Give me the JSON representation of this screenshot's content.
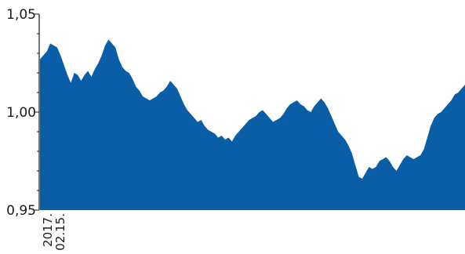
{
  "chart_data": {
    "type": "area",
    "title": "",
    "xlabel": "",
    "ylabel": "",
    "ylim": [
      0.95,
      1.05
    ],
    "yticks": [
      {
        "value": 1.05,
        "label": "1,05"
      },
      {
        "value": 1.0,
        "label": "1,00"
      },
      {
        "value": 0.95,
        "label": "0,95"
      }
    ],
    "xticks": [
      {
        "label_lines": [
          "2017.",
          "02.15."
        ]
      }
    ],
    "grid": false,
    "series": [
      {
        "color": "#0a5ea8",
        "values": [
          1.027,
          1.029,
          1.031,
          1.035,
          1.034,
          1.033,
          1.029,
          1.024,
          1.019,
          1.015,
          1.02,
          1.019,
          1.016,
          1.019,
          1.021,
          1.018,
          1.022,
          1.025,
          1.029,
          1.034,
          1.037,
          1.035,
          1.033,
          1.027,
          1.023,
          1.021,
          1.02,
          1.017,
          1.013,
          1.011,
          1.008,
          1.007,
          1.006,
          1.007,
          1.008,
          1.01,
          1.011,
          1.013,
          1.016,
          1.014,
          1.012,
          1.008,
          1.004,
          1.001,
          0.999,
          0.997,
          0.995,
          0.996,
          0.993,
          0.991,
          0.99,
          0.989,
          0.987,
          0.988,
          0.986,
          0.987,
          0.985,
          0.988,
          0.99,
          0.992,
          0.994,
          0.996,
          0.997,
          0.998,
          1.0,
          1.001,
          0.999,
          0.997,
          0.995,
          0.996,
          0.997,
          0.999,
          1.002,
          1.004,
          1.005,
          1.006,
          1.004,
          1.003,
          1.001,
          1.0,
          1.003,
          1.005,
          1.007,
          1.005,
          1.002,
          0.998,
          0.994,
          0.99,
          0.988,
          0.986,
          0.983,
          0.979,
          0.973,
          0.967,
          0.966,
          0.969,
          0.972,
          0.971,
          0.972,
          0.975,
          0.976,
          0.977,
          0.975,
          0.972,
          0.97,
          0.973,
          0.976,
          0.978,
          0.977,
          0.976,
          0.977,
          0.978,
          0.981,
          0.987,
          0.993,
          0.997,
          0.999,
          1.0,
          1.002,
          1.004,
          1.006,
          1.009,
          1.01,
          1.012,
          1.014
        ]
      }
    ]
  }
}
